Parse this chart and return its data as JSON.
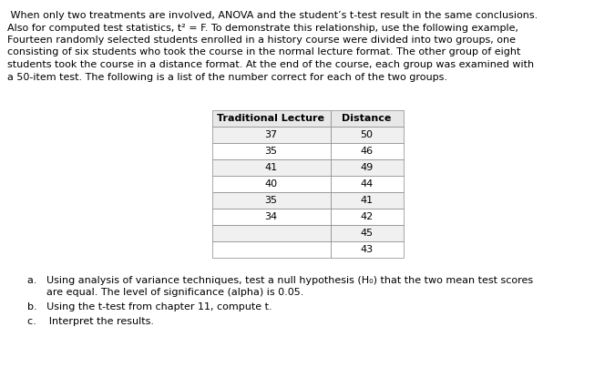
{
  "paragraph_lines": [
    " When only two treatments are involved, ANOVA and the student’s t-test result in the same conclusions.",
    "Also for computed test statistics, t² = F. To demonstrate this relationship, use the following example,",
    "Fourteen randomly selected students enrolled in a history course were divided into two groups, one",
    "consisting of six students who took the course in the normal lecture format. The other group of eight",
    "students took the course in a distance format. At the end of the course, each group was examined with",
    "a 50-item test. The following is a list of the number correct for each of the two groups."
  ],
  "col1_header": "Traditional Lecture",
  "col2_header": "Distance",
  "col1_data": [
    "37",
    "35",
    "41",
    "40",
    "35",
    "34",
    "",
    ""
  ],
  "col2_data": [
    "50",
    "46",
    "49",
    "44",
    "41",
    "42",
    "45",
    "43"
  ],
  "qa_line1": "a.   Using analysis of variance techniques, test a null hypothesis (H₀) that the two mean test scores",
  "qa_line2": "      are equal. The level of significance (alpha) is 0.05.",
  "qb": "b.   Using the t-test from chapter 11, compute t.",
  "qc": "c.    Interpret the results.",
  "bg_color": "#ffffff",
  "text_color": "#000000",
  "font_size_para": 8.0,
  "font_size_table_header": 8.0,
  "font_size_table_data": 8.0,
  "font_size_questions": 8.0,
  "table_header_bg": "#e8e8e8",
  "table_row_bg_odd": "#f0f0f0",
  "table_row_bg_even": "#ffffff",
  "table_border_color": "#888888",
  "table_border_lw": 0.5
}
